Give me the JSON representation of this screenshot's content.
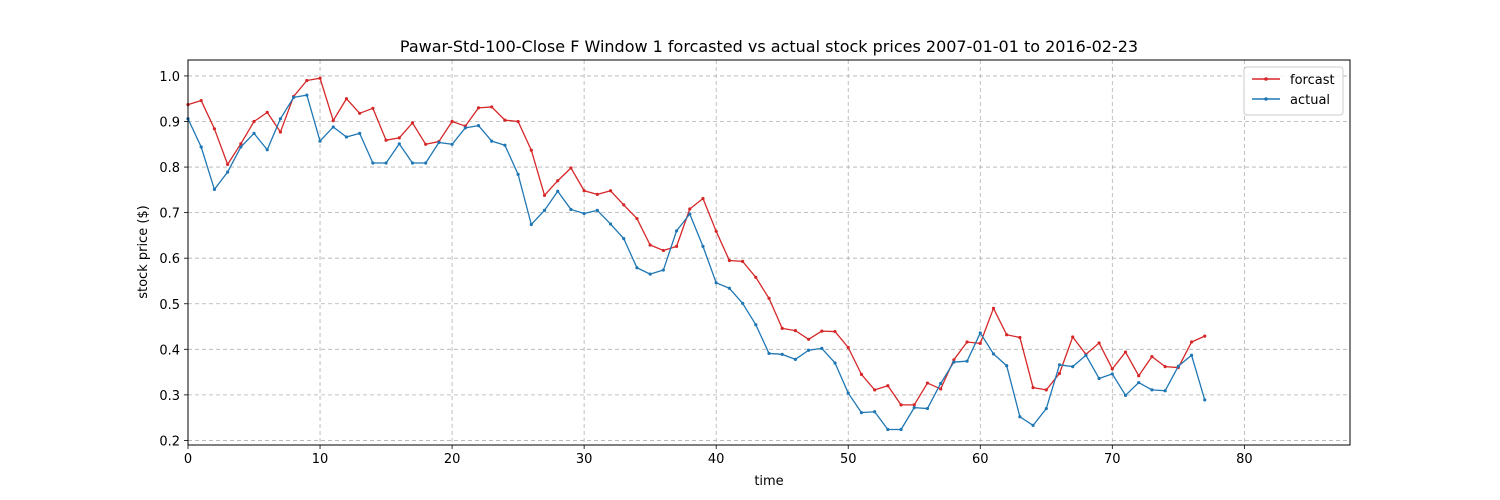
{
  "chart_data": {
    "type": "line",
    "title": "Pawar-Std-100-Close F Window 1 forcasted vs actual stock prices 2007-01-01 to 2016-02-23",
    "xlabel": "time",
    "ylabel": "stock price ($)",
    "xlim": [
      0,
      88
    ],
    "ylim": [
      0.19,
      1.035
    ],
    "xticks": [
      0,
      10,
      20,
      30,
      40,
      50,
      60,
      70,
      80
    ],
    "yticks": [
      0.2,
      0.3,
      0.4,
      0.5,
      0.6,
      0.7,
      0.8,
      0.9,
      1.0
    ],
    "xtick_labels": [
      "0",
      "10",
      "20",
      "30",
      "40",
      "50",
      "60",
      "70",
      "80"
    ],
    "ytick_labels": [
      "0.2",
      "0.3",
      "0.4",
      "0.5",
      "0.6",
      "0.7",
      "0.8",
      "0.9",
      "1.0"
    ],
    "grid": true,
    "legend_position": "top-right",
    "series": [
      {
        "name": "forcast",
        "color": "#d62728",
        "values": [
          0.937,
          0.946,
          0.884,
          0.806,
          0.851,
          0.9,
          0.92,
          0.877,
          0.955,
          0.99,
          0.995,
          0.902,
          0.95,
          0.918,
          0.929,
          0.859,
          0.864,
          0.897,
          0.85,
          0.856,
          0.9,
          0.89,
          0.93,
          0.932,
          0.903,
          0.9,
          0.837,
          0.738,
          0.77,
          0.798,
          0.748,
          0.74,
          0.748,
          0.717,
          0.687,
          0.629,
          0.617,
          0.626,
          0.708,
          0.731,
          0.659,
          0.595,
          0.593,
          0.558,
          0.512,
          0.446,
          0.441,
          0.422,
          0.44,
          0.439,
          0.404,
          0.345,
          0.311,
          0.32,
          0.278,
          0.278,
          0.326,
          0.313,
          0.377,
          0.416,
          0.413,
          0.49,
          0.432,
          0.426,
          0.316,
          0.311,
          0.347,
          0.427,
          0.389,
          0.414,
          0.357,
          0.394,
          0.342,
          0.384,
          0.362,
          0.36,
          0.416,
          0.429
        ]
      },
      {
        "name": "actual",
        "color": "#1f77b4",
        "values": [
          0.906,
          0.844,
          0.751,
          0.789,
          0.844,
          0.874,
          0.838,
          0.906,
          0.953,
          0.958,
          0.857,
          0.888,
          0.866,
          0.874,
          0.809,
          0.809,
          0.851,
          0.809,
          0.809,
          0.854,
          0.85,
          0.886,
          0.891,
          0.857,
          0.848,
          0.784,
          0.674,
          0.705,
          0.747,
          0.707,
          0.698,
          0.705,
          0.675,
          0.643,
          0.579,
          0.565,
          0.574,
          0.66,
          0.697,
          0.626,
          0.546,
          0.534,
          0.501,
          0.454,
          0.391,
          0.389,
          0.378,
          0.398,
          0.402,
          0.37,
          0.304,
          0.261,
          0.263,
          0.224,
          0.224,
          0.272,
          0.27,
          0.325,
          0.372,
          0.374,
          0.436,
          0.39,
          0.364,
          0.252,
          0.233,
          0.27,
          0.366,
          0.362,
          0.387,
          0.336,
          0.346,
          0.299,
          0.327,
          0.311,
          0.309,
          0.363,
          0.387,
          0.289
        ]
      }
    ]
  }
}
